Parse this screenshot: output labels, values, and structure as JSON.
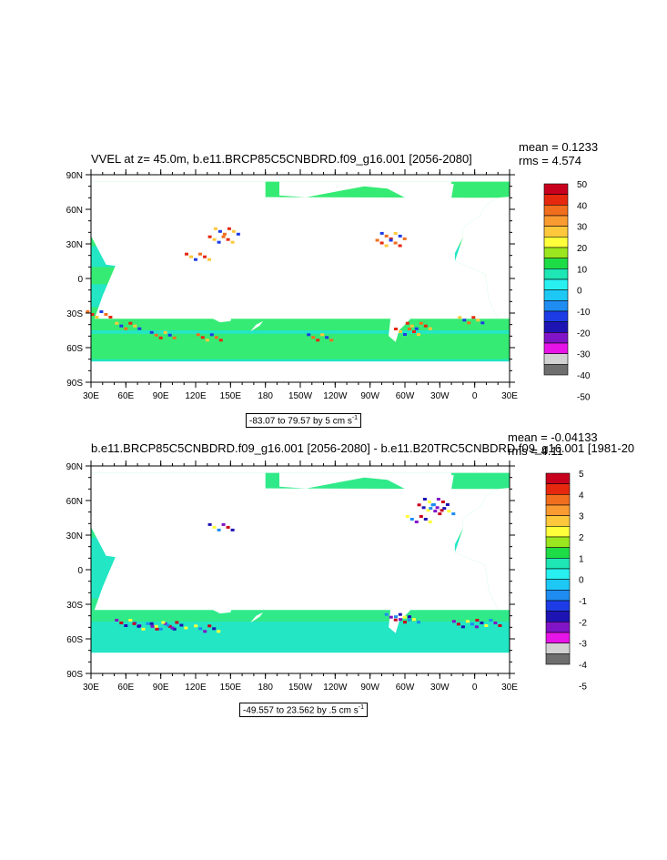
{
  "panels": [
    {
      "title": "VVEL at z=  45.0m, b.e11.BRCP85C5CNBDRD.f09_g16.001 [2056-2080]",
      "mean": "mean = 0.1233",
      "rms": "rms = 4.574",
      "range_text": "-83.07 to 79.57 by 5 cm s",
      "range_sup": "-1",
      "colorbar_labels": [
        "50",
        "40",
        "30",
        "20",
        "10",
        "0",
        "-10",
        "-20",
        "-30",
        "-40",
        "-50"
      ],
      "lat_labels": [
        "90N",
        "60N",
        "30N",
        "0",
        "30S",
        "60S",
        "90S"
      ],
      "lon_labels": [
        "30E",
        "60E",
        "90E",
        "120E",
        "150E",
        "180",
        "150W",
        "120W",
        "90W",
        "60W",
        "30W",
        "0",
        "30E"
      ]
    },
    {
      "title": "b.e11.BRCP85C5CNBDRD.f09_g16.001 [2056-2080] - b.e11.B20TRC5CNBDRD.f09_g16.001 [1981-20",
      "mean": "mean = -0.04133",
      "rms": "rms = 4.11",
      "range_text": "-49.557 to 23.562 by .5 cm s",
      "range_sup": "-1",
      "colorbar_labels": [
        "5",
        "4",
        "3",
        "2",
        "1",
        "0",
        "-1",
        "-2",
        "-3",
        "-4",
        "-5"
      ],
      "lat_labels": [
        "90N",
        "60N",
        "30N",
        "0",
        "30S",
        "60S",
        "90S"
      ],
      "lon_labels": [
        "30E",
        "60E",
        "90E",
        "120E",
        "150E",
        "180",
        "150W",
        "120W",
        "90W",
        "60W",
        "30W",
        "0",
        "30E"
      ]
    }
  ],
  "colorbar_colors": [
    "#c8001e",
    "#e6280f",
    "#f06e1e",
    "#fa9b32",
    "#ffc83c",
    "#ffff3c",
    "#9be61e",
    "#1edc46",
    "#1ee6b4",
    "#28f0f0",
    "#1ec8f5",
    "#1e8cf0",
    "#1e3ce6",
    "#1e14b4",
    "#8214c8",
    "#e614e6",
    "#d2d2d2",
    "#6e6e6e"
  ],
  "map_colors": {
    "ocean_main": "#22e6c4",
    "ocean_alt": "#3cec5a",
    "land": "#ffffff"
  }
}
